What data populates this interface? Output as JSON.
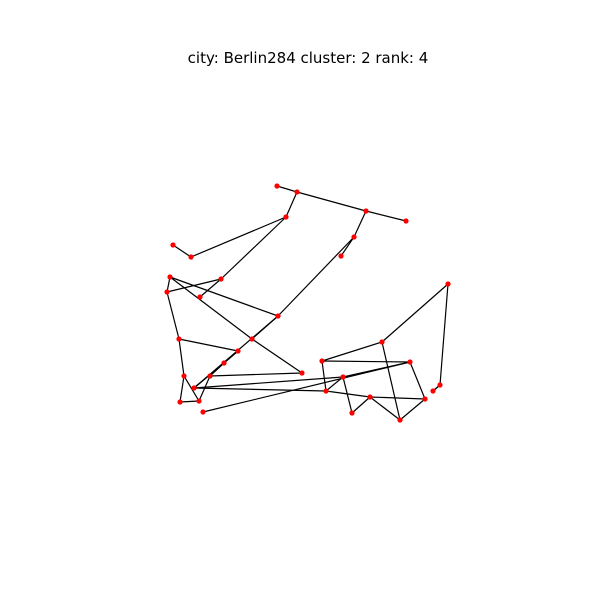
{
  "title": "city: Berlin284 cluster: 2 rank: 4",
  "colors": {
    "background": "#ffffff",
    "node": "#ff0000",
    "edge": "#000000",
    "text": "#000000"
  },
  "graph": {
    "nodes": [
      {
        "id": "n1"
      },
      {
        "id": "n2"
      },
      {
        "id": "n3"
      },
      {
        "id": "n4"
      },
      {
        "id": "n5"
      },
      {
        "id": "n6"
      },
      {
        "id": "n7"
      },
      {
        "id": "n8"
      },
      {
        "id": "n9"
      },
      {
        "id": "n10"
      },
      {
        "id": "n11"
      },
      {
        "id": "n12"
      },
      {
        "id": "n13"
      },
      {
        "id": "n14"
      },
      {
        "id": "n15"
      },
      {
        "id": "n16"
      },
      {
        "id": "n17"
      },
      {
        "id": "n18"
      },
      {
        "id": "n19"
      },
      {
        "id": "n20"
      },
      {
        "id": "n21"
      },
      {
        "id": "n22"
      },
      {
        "id": "n23"
      },
      {
        "id": "n24"
      },
      {
        "id": "n25"
      },
      {
        "id": "n26"
      },
      {
        "id": "n27"
      },
      {
        "id": "n28"
      },
      {
        "id": "n29"
      },
      {
        "id": "n30"
      },
      {
        "id": "n31"
      },
      {
        "id": "n32"
      },
      {
        "id": "n33"
      },
      {
        "id": "n34"
      },
      {
        "id": "n35"
      },
      {
        "id": "n36"
      },
      {
        "id": "n37"
      }
    ],
    "edges": [
      [
        "n1",
        "n2"
      ],
      [
        "n2",
        "n3"
      ],
      [
        "n3",
        "n4"
      ],
      [
        "n2",
        "n5"
      ],
      [
        "n3",
        "n6"
      ],
      [
        "n6",
        "n7"
      ],
      [
        "n6",
        "n14"
      ],
      [
        "n5",
        "n9"
      ],
      [
        "n5",
        "n10"
      ],
      [
        "n10",
        "n11"
      ],
      [
        "n8",
        "n9"
      ],
      [
        "n10",
        "n13"
      ],
      [
        "n12",
        "n13"
      ],
      [
        "n12",
        "n14"
      ],
      [
        "n12",
        "n15"
      ],
      [
        "n14",
        "n15"
      ],
      [
        "n15",
        "n23"
      ],
      [
        "n13",
        "n16"
      ],
      [
        "n16",
        "n19"
      ],
      [
        "n16",
        "n17"
      ],
      [
        "n17",
        "n18"
      ],
      [
        "n18",
        "n22"
      ],
      [
        "n22",
        "n23"
      ],
      [
        "n14",
        "n24"
      ],
      [
        "n17",
        "n24"
      ],
      [
        "n18",
        "n24"
      ],
      [
        "n19",
        "n20"
      ],
      [
        "n19",
        "n21"
      ],
      [
        "n20",
        "n21"
      ],
      [
        "n21",
        "n22"
      ],
      [
        "n24",
        "n25"
      ],
      [
        "n24",
        "n26"
      ],
      [
        "n25",
        "n27"
      ],
      [
        "n25",
        "n26"
      ],
      [
        "n26",
        "n28"
      ],
      [
        "n28",
        "n27"
      ],
      [
        "n27",
        "n29"
      ],
      [
        "n27",
        "n30"
      ],
      [
        "n29",
        "n30"
      ],
      [
        "n30",
        "n31"
      ],
      [
        "n29",
        "n32"
      ],
      [
        "n32",
        "n33"
      ],
      [
        "n33",
        "n34"
      ],
      [
        "n34",
        "n35"
      ],
      [
        "n31",
        "n36"
      ],
      [
        "n31",
        "n37"
      ],
      [
        "n35",
        "n34"
      ],
      [
        "n26",
        "n31"
      ],
      [
        "n37",
        "n25"
      ],
      [
        "n37",
        "n32"
      ]
    ]
  }
}
